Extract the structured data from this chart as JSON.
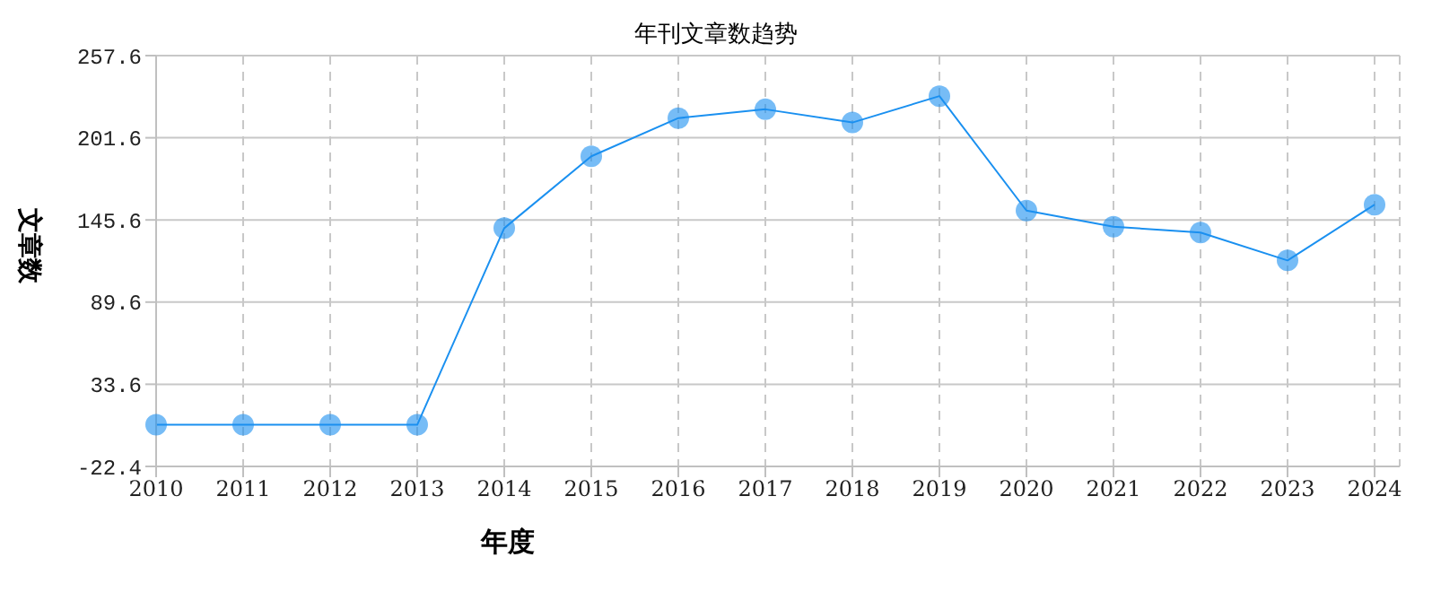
{
  "chart_data": {
    "type": "line",
    "title": "年刊文章数趋势",
    "xlabel": "年度",
    "ylabel": "文章数",
    "categories": [
      "2010",
      "2011",
      "2012",
      "2013",
      "2014",
      "2015",
      "2016",
      "2017",
      "2018",
      "2019",
      "2020",
      "2021",
      "2022",
      "2023",
      "2024"
    ],
    "series": [
      {
        "color": "#1a90f0",
        "values": [
          6,
          6,
          6,
          6,
          140,
          189,
          215,
          221,
          212,
          230,
          152,
          141,
          137,
          118,
          156
        ]
      }
    ],
    "ylim": [
      -22.4,
      257.6
    ],
    "yticks": [
      -22.4,
      33.6,
      89.6,
      145.6,
      201.6,
      257.6
    ],
    "grid": true,
    "marker": "circle",
    "line_style": "solid"
  }
}
